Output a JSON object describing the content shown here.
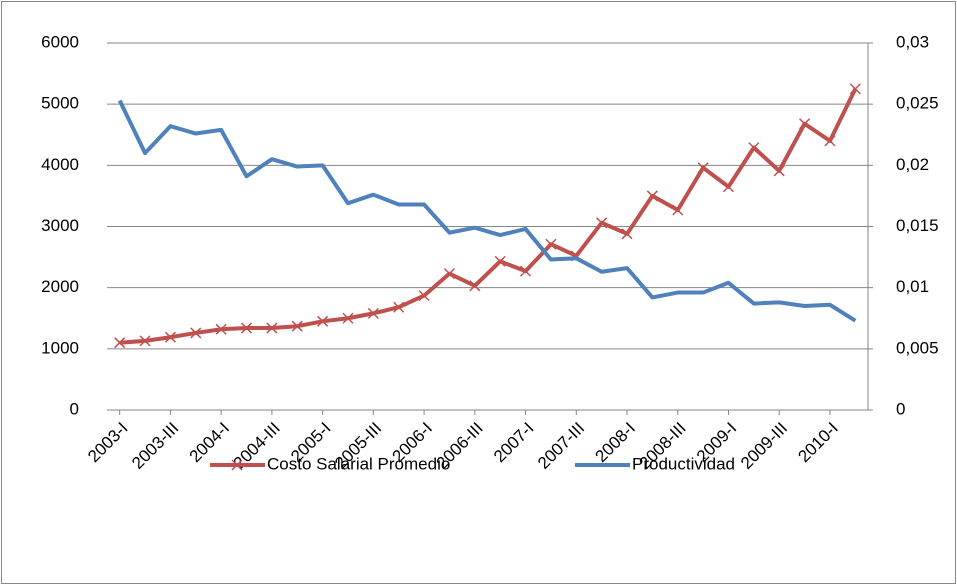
{
  "chart_data": {
    "type": "line",
    "categories": [
      "2003-I",
      null,
      "2003-III",
      null,
      "2004-I",
      null,
      "2004-III",
      null,
      "2005-I",
      null,
      "2005-III",
      null,
      "2006-I",
      null,
      "2006-III",
      null,
      "2007-I",
      null,
      "2007-III",
      null,
      "2008-I",
      null,
      "2008-III",
      null,
      "2009-I",
      null,
      "2009-III",
      null,
      "2010-I",
      null
    ],
    "series": [
      {
        "name": "Costo Salarial Promedio",
        "color": "#c0504d",
        "marker": "x",
        "values": [
          1100,
          1130,
          1190,
          1260,
          1320,
          1340,
          1340,
          1370,
          1450,
          1500,
          1580,
          1680,
          1870,
          2230,
          2030,
          2430,
          2270,
          2710,
          2520,
          3060,
          2880,
          3500,
          3270,
          3960,
          3650,
          4290,
          3910,
          4680,
          4400,
          5250
        ]
      },
      {
        "name": "Productividad",
        "color": "#4f81bd",
        "axis": "y2",
        "values": [
          0.0253,
          0.021,
          0.0232,
          0.0226,
          0.0229,
          0.0191,
          0.0205,
          0.0199,
          0.02,
          0.0169,
          0.0176,
          0.0168,
          0.0168,
          0.0145,
          0.0149,
          0.0143,
          0.0148,
          0.0123,
          0.0124,
          0.0113,
          0.0116,
          0.0092,
          0.0096,
          0.0096,
          0.0104,
          0.0087,
          0.0088,
          0.0085,
          0.0086,
          0.0073
        ]
      }
    ],
    "ylim": [
      0,
      6000
    ],
    "yticks": [
      0,
      1000,
      2000,
      3000,
      4000,
      5000,
      6000
    ],
    "y2lim": [
      0,
      0.03
    ],
    "y2ticks": [
      0,
      {
        "value": 0.005,
        "label": "0,005"
      },
      {
        "value": 0.01,
        "label": "0,01"
      },
      {
        "value": 0.015,
        "label": "0,015"
      },
      {
        "value": 0.02,
        "label": "0,02"
      },
      {
        "value": 0.025,
        "label": "0,025"
      },
      {
        "value": 0.03,
        "label": "0,03"
      }
    ],
    "grid": true,
    "legend": "bottom"
  }
}
